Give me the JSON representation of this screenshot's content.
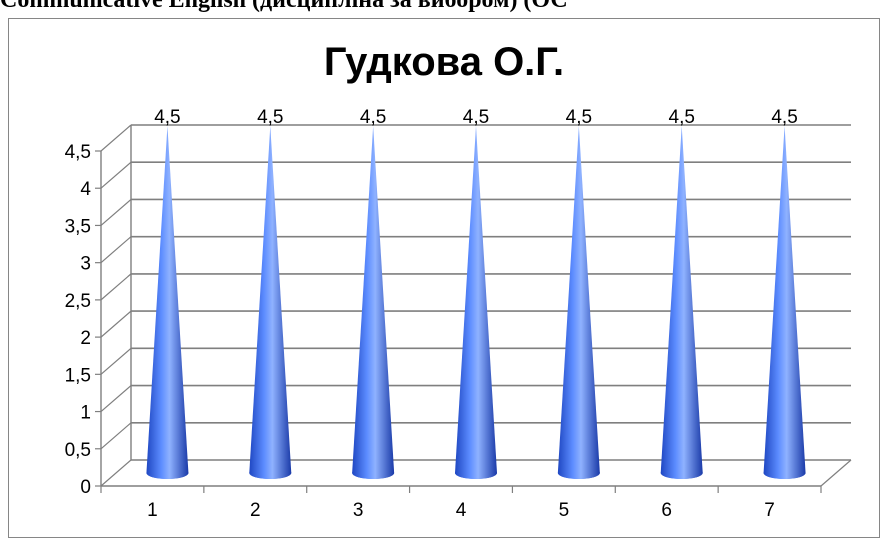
{
  "document": {
    "heading": "Communicative English (дисципліна за вибором) (ОС"
  },
  "chart_data": {
    "type": "bar",
    "shape": "cone",
    "title": "Гудкова О.Г.",
    "categories": [
      "1",
      "2",
      "3",
      "4",
      "5",
      "6",
      "7"
    ],
    "values": [
      4.5,
      4.5,
      4.5,
      4.5,
      4.5,
      4.5,
      4.5
    ],
    "data_labels": [
      "4,5",
      "4,5",
      "4,5",
      "4,5",
      "4,5",
      "4,5",
      "4,5"
    ],
    "y_ticks": [
      "0",
      "0,5",
      "1",
      "1,5",
      "2",
      "2,5",
      "3",
      "3,5",
      "4",
      "4,5"
    ],
    "ylim": [
      0,
      4.5
    ],
    "grid": true,
    "legend": "none",
    "colors": {
      "cone_light": "#7fa6ff",
      "cone_mid": "#3b6ff0",
      "cone_dark": "#1a3fb8",
      "grid": "#7f7f7f"
    }
  }
}
